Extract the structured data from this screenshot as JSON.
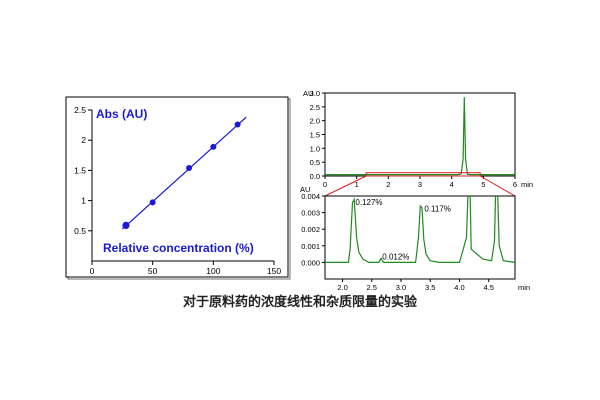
{
  "caption": "对于原料药的浓度线性和杂质限量的实验",
  "colors": {
    "blue": "#1a1ad6",
    "green": "#1f8a1f",
    "red": "#d62020",
    "axis": "#000000"
  },
  "chart_data": [
    {
      "type": "scatter",
      "title": "Abs (AU)",
      "xlabel": "Relative concentration (%)",
      "ylabel": "Abs (AU)",
      "xlim": [
        0,
        150
      ],
      "ylim": [
        0,
        2.5
      ],
      "xticks": [
        0,
        50,
        100,
        150
      ],
      "xtick_labels": [
        "0",
        "50",
        "100",
        "150"
      ],
      "yticks": [
        0.5,
        1,
        1.5,
        2,
        2.5
      ],
      "ytick_labels": [
        "0.5",
        "1",
        "1.5",
        "2",
        "2.5"
      ],
      "grid": false,
      "series": [
        {
          "x": [
            28,
            50,
            80,
            100,
            120
          ],
          "y": [
            0.59,
            0.97,
            1.54,
            1.89,
            2.26
          ]
        }
      ],
      "fit_line": {
        "x": [
          25,
          127
        ],
        "y": [
          0.53,
          2.38
        ]
      }
    },
    {
      "type": "line",
      "title": "",
      "xlabel": "min",
      "ylabel": "AU",
      "xlim": [
        0,
        6
      ],
      "ylim": [
        0,
        3
      ],
      "xticks": [
        0,
        1,
        2,
        3,
        4,
        5,
        6
      ],
      "xtick_labels": [
        "0",
        "1",
        "2",
        "3",
        "4",
        "5",
        "6"
      ],
      "yticks": [
        0,
        0.5,
        1,
        1.5,
        2,
        2.5,
        3
      ],
      "ytick_labels": [
        "0.0",
        "0.5",
        "1.0",
        "1.5",
        "2.0",
        "2.5",
        "3.0"
      ],
      "grid": false,
      "series": [
        {
          "x": [
            0,
            4.2,
            4.3,
            4.36,
            4.4,
            4.44,
            4.5,
            4.6,
            6
          ],
          "y": [
            0.05,
            0.05,
            0.08,
            0.6,
            2.85,
            0.6,
            0.06,
            0.05,
            0.05
          ]
        }
      ],
      "zoom_box": {
        "x": [
          1.3,
          4.9
        ],
        "y": [
          0,
          0.12
        ]
      }
    },
    {
      "type": "line",
      "title": "",
      "xlabel": "min",
      "ylabel": "AU",
      "xlim": [
        1.7,
        4.95
      ],
      "ylim": [
        -0.001,
        0.004
      ],
      "xticks": [
        2.0,
        2.5,
        3.0,
        3.5,
        4.0,
        4.5
      ],
      "xtick_labels": [
        "2.0",
        "2.5",
        "3.0",
        "3.5",
        "4.0",
        "4.5"
      ],
      "yticks": [
        0,
        0.001,
        0.002,
        0.003,
        0.004
      ],
      "ytick_labels": [
        "0.000",
        "0.001",
        "0.002",
        "0.003",
        "0.004"
      ],
      "grid": false,
      "series": [
        {
          "x": [
            1.7,
            2.1,
            2.13,
            2.17,
            2.2,
            2.24,
            2.28,
            2.35,
            2.45,
            2.62,
            2.66,
            2.7,
            2.75,
            2.9,
            3.25,
            3.3,
            3.33,
            3.36,
            3.39,
            3.43,
            3.5,
            3.65,
            4.0,
            4.12,
            4.15,
            4.18,
            4.2,
            4.4,
            4.55,
            4.6,
            4.62,
            4.65,
            4.68,
            4.75,
            4.95
          ],
          "y": [
            0.0,
            0.0,
            0.0008,
            0.0036,
            0.0038,
            0.0015,
            0.0006,
            0.0002,
            0.0,
            0.0,
            0.00025,
            0.0,
            0.0,
            0.0,
            0.0,
            0.0015,
            0.0034,
            0.0033,
            0.0014,
            0.0005,
            0.0001,
            0.0,
            0.0,
            0.0015,
            0.0045,
            0.0045,
            0.0008,
            0.0002,
            0.0001,
            0.0013,
            0.0045,
            0.0045,
            0.001,
            0.0001,
            0.0
          ]
        }
      ],
      "annotations": [
        {
          "text": "0.127%",
          "x": 2.22,
          "y": 0.00365
        },
        {
          "text": "0.012%",
          "x": 2.68,
          "y": 0.00035
        },
        {
          "text": "0.117%",
          "x": 3.4,
          "y": 0.00325
        }
      ]
    }
  ]
}
